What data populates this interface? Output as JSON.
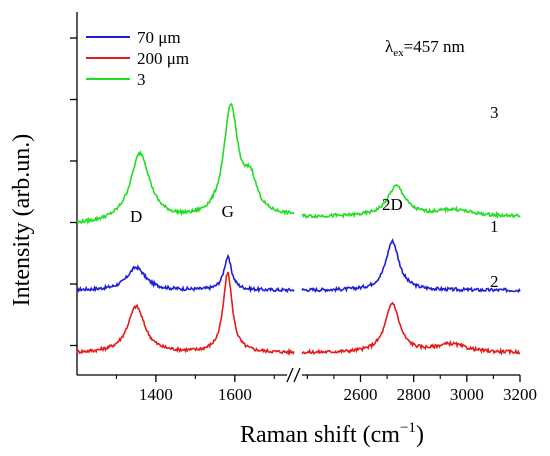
{
  "chart_data": {
    "type": "line",
    "title": "",
    "xlabel": "Raman shift (cm⁻¹)",
    "xlabel_main": "Raman shift (cm",
    "xlabel_exp": "−1",
    "xlabel_close": ")",
    "ylabel": "Intensity (arb.un.)",
    "x_axis_break": true,
    "x_panels": [
      {
        "xlim": [
          1200,
          1750
        ],
        "ticks": [
          1400,
          1600
        ]
      },
      {
        "xlim": [
          2380,
          3200
        ],
        "ticks": [
          2600,
          2800,
          3000,
          3200
        ]
      }
    ],
    "y_ticks_labeled": false,
    "annotation": {
      "lambda": "λ",
      "sub": "ex",
      "text": "=457 nm"
    },
    "peak_labels": [
      {
        "text": "D",
        "x": 1350
      },
      {
        "text": "G",
        "x": 1582
      },
      {
        "text": "2D",
        "x": 2720
      }
    ],
    "legend_position": "top-left",
    "series": [
      {
        "name": "70  μm",
        "label": "1",
        "color": "#1f1fd6",
        "baseline": 1.2,
        "peaks": [
          [
            1350,
            0.42,
            28
          ],
          [
            1582,
            0.6,
            12
          ],
          [
            2720,
            0.9,
            30
          ]
        ],
        "slope": 0.002
      },
      {
        "name": "200 μm",
        "label": "2",
        "color": "#e11d1d",
        "baseline": 0.05,
        "peaks": [
          [
            1350,
            0.85,
            26
          ],
          [
            1582,
            1.45,
            14
          ],
          [
            2720,
            0.9,
            32
          ],
          [
            2940,
            0.15,
            70
          ]
        ],
        "slope": 0.02
      },
      {
        "name": "3",
        "label": "3",
        "color": "#22dd22",
        "baseline": 2.4,
        "peaks": [
          [
            1360,
            1.25,
            30
          ],
          [
            1590,
            2.0,
            22
          ],
          [
            1640,
            0.6,
            20
          ],
          [
            2735,
            0.55,
            40
          ],
          [
            2950,
            0.12,
            80
          ]
        ],
        "slope": 0.5
      }
    ]
  }
}
